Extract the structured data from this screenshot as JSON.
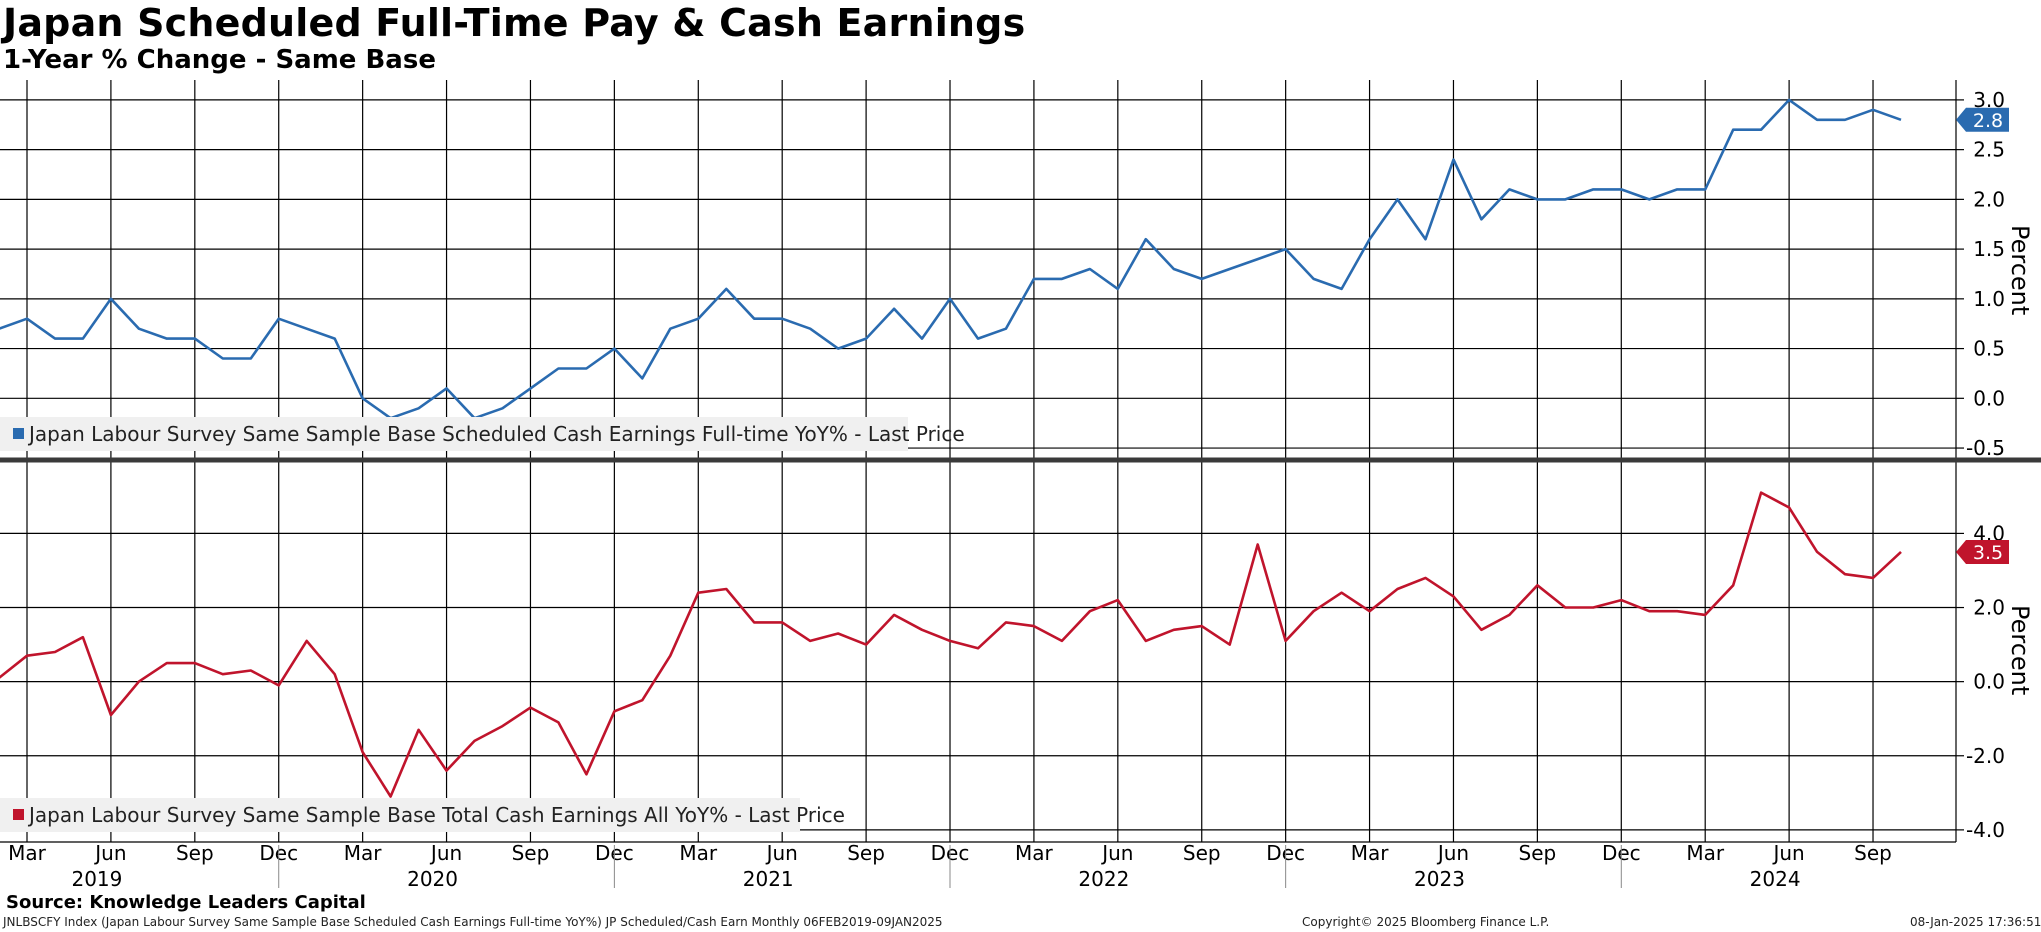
{
  "header": {
    "title": "Japan Scheduled Full-Time Pay & Cash Earnings",
    "subtitle": "1-Year % Change - Same Base"
  },
  "footer": {
    "source": "Source: Knowledge Leaders Capital",
    "index_line": "JNLBSCFY Index (Japan Labour Survey Same Sample Base Scheduled Cash Earnings Full-time YoY%) JP Scheduled/Cash Earn  Monthly 06FEB2019-09JAN2025",
    "copyright": "Copyright© 2025 Bloomberg Finance L.P.",
    "timestamp": "08-Jan-2025 17:36:51"
  },
  "colors": {
    "blue": "#2a6bb0",
    "red": "#c0142c",
    "grid": "#000000"
  },
  "chart_data": [
    {
      "type": "line",
      "panel": "top",
      "ylabel": "Percent",
      "ylim": [
        -0.6,
        3.2
      ],
      "yticks": [
        "3.0",
        "2.5",
        "2.0",
        "1.5",
        "1.0",
        "0.5",
        "0.0",
        "-0.5"
      ],
      "last_value_label": "2.8",
      "legend": "Japan Labour Survey Same Sample Base Scheduled Cash Earnings Full-time YoY% - Last Price",
      "series": [
        {
          "name": "Japan Labour Survey Same Sample Base Scheduled Cash Earnings Full-time YoY% - Last Price",
          "start": "2019-01",
          "values": [
            1.1,
            0.7,
            0.8,
            0.6,
            0.6,
            1.0,
            0.7,
            0.6,
            0.6,
            0.4,
            0.4,
            0.8,
            0.7,
            0.6,
            0.0,
            -0.2,
            -0.1,
            0.1,
            -0.2,
            -0.1,
            0.1,
            0.3,
            0.3,
            0.5,
            0.2,
            0.7,
            0.8,
            1.1,
            0.8,
            0.8,
            0.7,
            0.5,
            0.6,
            0.9,
            0.6,
            1.0,
            0.6,
            0.7,
            1.2,
            1.2,
            1.3,
            1.1,
            1.6,
            1.3,
            1.2,
            1.3,
            1.4,
            1.5,
            1.2,
            1.1,
            1.6,
            2.0,
            1.6,
            2.4,
            1.8,
            2.1,
            2.0,
            2.0,
            2.1,
            2.1,
            2.0,
            2.1,
            2.1,
            2.7,
            2.7,
            3.0,
            2.8,
            2.8,
            2.9,
            2.8
          ]
        }
      ]
    },
    {
      "type": "line",
      "panel": "bottom",
      "ylabel": "Percent",
      "ylim": [
        -4.3,
        5.9
      ],
      "yticks": [
        "4.0",
        "2.0",
        "0.0",
        "-2.0",
        "-4.0"
      ],
      "last_value_label": "3.5",
      "legend": "Japan Labour Survey Same Sample Base Total Cash Earnings All YoY% - Last Price",
      "series": [
        {
          "name": "Japan Labour Survey Same Sample Base Total Cash Earnings All YoY% - Last Price",
          "start": "2019-01",
          "values": [
            0.3,
            0.1,
            0.7,
            0.8,
            1.2,
            -0.9,
            0.0,
            0.5,
            0.5,
            0.2,
            0.3,
            -0.1,
            1.1,
            0.2,
            -1.9,
            -3.1,
            -1.3,
            -2.4,
            -1.6,
            -1.2,
            -0.7,
            -1.1,
            -2.5,
            -0.8,
            -0.5,
            0.7,
            2.4,
            2.5,
            1.6,
            1.6,
            1.1,
            1.3,
            1.0,
            1.8,
            1.4,
            1.1,
            0.9,
            1.6,
            1.5,
            1.1,
            1.9,
            2.2,
            1.1,
            1.4,
            1.5,
            1.0,
            3.7,
            1.1,
            1.9,
            2.4,
            1.9,
            2.5,
            2.8,
            2.3,
            1.4,
            1.8,
            2.6,
            2.0,
            2.0,
            2.2,
            1.9,
            1.9,
            1.8,
            2.6,
            5.1,
            4.7,
            3.5,
            2.9,
            2.8,
            3.5
          ]
        }
      ]
    }
  ],
  "x_axis": {
    "months": [
      "Mar",
      "Jun",
      "Sep",
      "Dec",
      "Mar",
      "Jun",
      "Sep",
      "Dec",
      "Mar",
      "Jun",
      "Sep",
      "Dec",
      "Mar",
      "Jun",
      "Sep",
      "Dec",
      "Mar",
      "Jun",
      "Sep",
      "Dec",
      "Mar",
      "Jun",
      "Sep"
    ],
    "years": [
      "2019",
      "2020",
      "2021",
      "2022",
      "2023",
      "2024"
    ]
  }
}
